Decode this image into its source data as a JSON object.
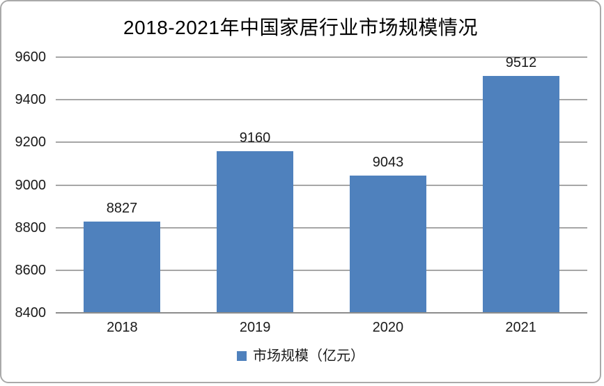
{
  "chart_data": {
    "type": "bar",
    "title": "2018-2021年中国家居行业市场规模情况",
    "categories": [
      "2018",
      "2019",
      "2020",
      "2021"
    ],
    "series": [
      {
        "name": "市场规模（亿元）",
        "values": [
          8827,
          9160,
          9043,
          9512
        ]
      }
    ],
    "data_labels_shown": true,
    "xlabel": "",
    "ylabel": "",
    "ylim": [
      8400,
      9600
    ],
    "ytick_step": 200,
    "ytick_labels": [
      "8400",
      "8600",
      "8800",
      "9000",
      "9200",
      "9400",
      "9600"
    ],
    "grid": true,
    "legend_position": "bottom",
    "legend_label": "市场规模（亿元）",
    "colors": {
      "bar": "#4f81bd",
      "gridline": "#a6a6a6",
      "axis_line": "#8c8c8c",
      "text": "#1a1a1a",
      "title_text": "#000000",
      "frame_border": "#a9a9a9",
      "background": "#ffffff"
    }
  }
}
